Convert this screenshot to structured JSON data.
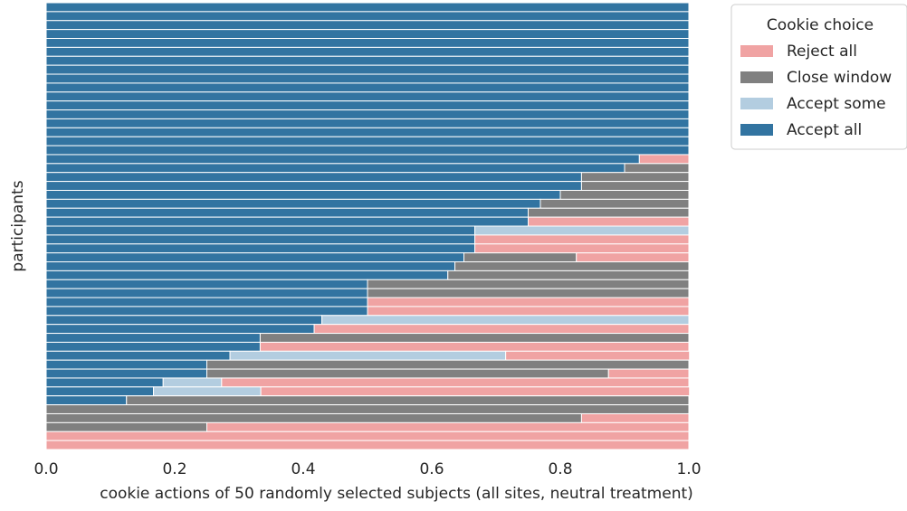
{
  "chart_data": {
    "type": "stacked_barh",
    "xlabel": "cookie actions of 50 randomly selected subjects (all sites, neutral treatment)",
    "ylabel": "participants",
    "legend_title": "Cookie choice",
    "legend_position": "upper right outside",
    "xlim": [
      0,
      1
    ],
    "xticks": [
      {
        "value": 0,
        "label": "0.0"
      },
      0.2,
      0.4,
      0.6,
      0.8,
      {
        "value": 1,
        "label": "1.0"
      }
    ],
    "categories": [
      null,
      null,
      null,
      null,
      null,
      null,
      null,
      null,
      null,
      null,
      null,
      null,
      null,
      null,
      null,
      null,
      null,
      null,
      null,
      null,
      null,
      null,
      null,
      null,
      null,
      null,
      null,
      null,
      null,
      null,
      null,
      null,
      null,
      null,
      null,
      null,
      null,
      null,
      null,
      null,
      null,
      null,
      null,
      null,
      null,
      null,
      null,
      null,
      null,
      null
    ],
    "series": [
      {
        "name": "Reject all",
        "color": "#f0a3a3",
        "values": [
          0,
          0,
          0,
          0,
          0,
          0,
          0,
          0,
          0,
          0,
          0,
          0,
          0,
          0,
          0,
          0,
          0,
          0.077,
          0,
          0,
          0,
          0,
          0,
          0,
          0.25,
          0,
          0.333,
          0.333,
          0.175,
          0,
          0,
          0,
          0,
          0.5,
          0.5,
          0,
          0.583,
          0,
          0.667,
          0.286,
          0,
          0.125,
          0.727,
          0.667,
          0,
          0,
          0.167,
          0.75,
          1,
          1
        ]
      },
      {
        "name": "Close window",
        "color": "#808080",
        "values": [
          0,
          0,
          0,
          0,
          0,
          0,
          0,
          0,
          0,
          0,
          0,
          0,
          0,
          0,
          0,
          0,
          0,
          0,
          0.1,
          0.167,
          0.167,
          0.2,
          0.231,
          0.25,
          0,
          0,
          0,
          0,
          0.175,
          0.364,
          0.375,
          0.5,
          0.5,
          0,
          0,
          0,
          0,
          0.667,
          0,
          0,
          0.75,
          0.625,
          0,
          0,
          0.875,
          1,
          0.833,
          0.25,
          0,
          0
        ]
      },
      {
        "name": "Accept some",
        "color": "#b3cde0",
        "values": [
          0,
          0,
          0,
          0,
          0,
          0,
          0,
          0,
          0,
          0,
          0,
          0,
          0,
          0,
          0,
          0,
          0,
          0,
          0,
          0,
          0,
          0,
          0,
          0,
          0,
          0.333,
          0,
          0,
          0,
          0,
          0,
          0,
          0,
          0,
          0,
          0.571,
          0,
          0,
          0,
          0.429,
          0,
          0,
          0.091,
          0.167,
          0,
          0,
          0,
          0,
          0,
          0
        ]
      },
      {
        "name": "Accept all",
        "color": "#3274a1",
        "values": [
          1,
          1,
          1,
          1,
          1,
          1,
          1,
          1,
          1,
          1,
          1,
          1,
          1,
          1,
          1,
          1,
          1,
          0.923,
          0.9,
          0.833,
          0.833,
          0.8,
          0.769,
          0.75,
          0.75,
          0.667,
          0.667,
          0.667,
          0.65,
          0.636,
          0.625,
          0.5,
          0.5,
          0.5,
          0.5,
          0.429,
          0.417,
          0.333,
          0.333,
          0.286,
          0.25,
          0.25,
          0.182,
          0.167,
          0.125,
          0,
          0,
          0,
          0,
          0
        ]
      }
    ]
  }
}
